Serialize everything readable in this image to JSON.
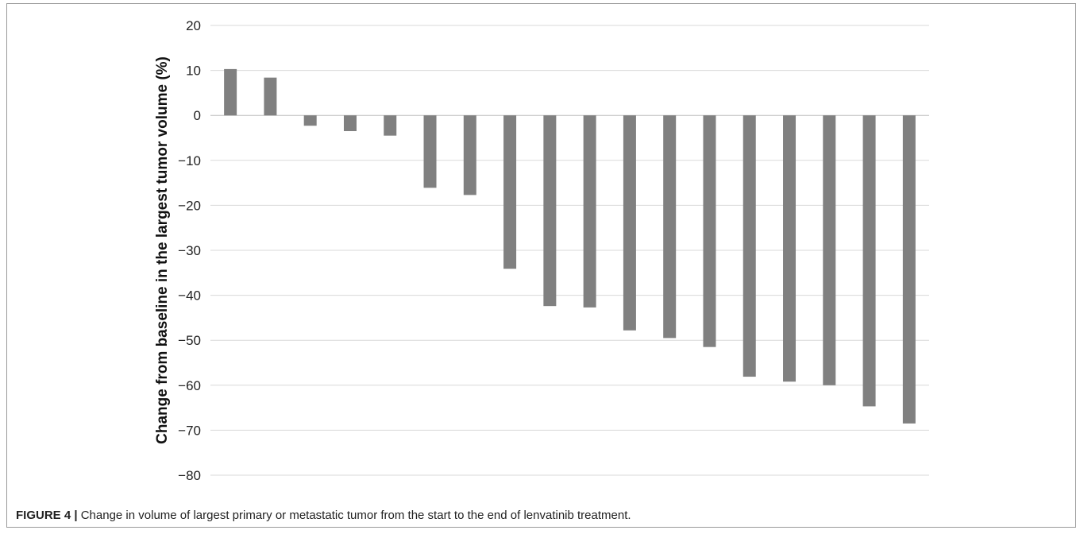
{
  "caption": {
    "label": "FIGURE 4 |",
    "text": "Change in volume of largest primary or metastatic tumor from the start to the end of lenvatinib treatment."
  },
  "chart_data": {
    "type": "bar",
    "title": "",
    "xlabel": "",
    "ylabel": "Change from baseline in the largest tumor volume (%)",
    "ylim": [
      -80,
      20
    ],
    "yticks": [
      20,
      10,
      0,
      -10,
      -20,
      -30,
      -40,
      -50,
      -60,
      -70,
      -80
    ],
    "grid": true,
    "bar_color": "#808080",
    "values": [
      10.3,
      8.4,
      -2.3,
      -3.5,
      -4.5,
      -16.1,
      -17.7,
      -34.1,
      -42.4,
      -42.7,
      -47.8,
      -49.5,
      -51.5,
      -58.1,
      -59.2,
      -60.0,
      -64.7,
      -68.5
    ]
  }
}
